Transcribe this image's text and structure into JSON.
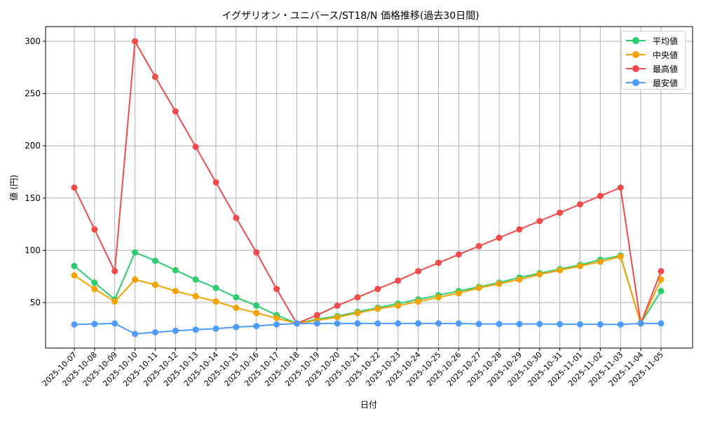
{
  "chart_data": {
    "type": "line",
    "title": "イグザリオン・ユニバース/ST18/N 価格推移(過去30日間)",
    "xlabel": "日付",
    "ylabel": "値 (円)",
    "ylim": [
      5,
      315
    ],
    "yticks": [
      50,
      100,
      150,
      200,
      250,
      300
    ],
    "grid": true,
    "legend_position": "upper right",
    "categories": [
      "2025-10-07",
      "2025-10-08",
      "2025-10-09",
      "2025-10-10",
      "2025-10-11",
      "2025-10-12",
      "2025-10-13",
      "2025-10-14",
      "2025-10-15",
      "2025-10-16",
      "2025-10-17",
      "2025-10-18",
      "2025-10-19",
      "2025-10-20",
      "2025-10-21",
      "2025-10-22",
      "2025-10-23",
      "2025-10-24",
      "2025-10-25",
      "2025-10-26",
      "2025-10-27",
      "2025-10-28",
      "2025-10-29",
      "2025-10-30",
      "2025-10-31",
      "2025-11-01",
      "2025-11-02",
      "2025-11-03",
      "2025-11-04",
      "2025-11-05"
    ],
    "series": [
      {
        "name": "平均値",
        "color": "#2ecc71",
        "values": [
          85,
          69,
          53,
          98,
          90,
          81,
          72,
          64,
          55,
          47,
          38,
          30,
          34,
          37,
          41,
          45,
          49,
          53,
          57,
          61,
          65,
          69,
          74,
          78,
          82,
          86,
          91,
          95,
          30,
          61
        ]
      },
      {
        "name": "中央値",
        "color": "#f5a300",
        "values": [
          76,
          63,
          51,
          72,
          67,
          61,
          56,
          51,
          45,
          40,
          35,
          30,
          33,
          36,
          40,
          44,
          47,
          51,
          55,
          59,
          64,
          68,
          72,
          77,
          81,
          85,
          89,
          94,
          30,
          72
        ]
      },
      {
        "name": "最高値",
        "color": "#f04a4a",
        "values": [
          160,
          120,
          80,
          300,
          266,
          233,
          199,
          165,
          131,
          98,
          63,
          30,
          38,
          47,
          55,
          63,
          71,
          80,
          88,
          96,
          104,
          112,
          120,
          128,
          136,
          144,
          152,
          160,
          30,
          80
        ]
      },
      {
        "name": "最安値",
        "color": "#4d9bff",
        "values": [
          29,
          29.5,
          30,
          20,
          21.5,
          23,
          24,
          25,
          26.5,
          27.5,
          29,
          30,
          30,
          30,
          30,
          30,
          30,
          30,
          30,
          30,
          29.5,
          29.5,
          29.5,
          29.5,
          29.3,
          29.2,
          29.1,
          29,
          30,
          30
        ]
      }
    ]
  }
}
